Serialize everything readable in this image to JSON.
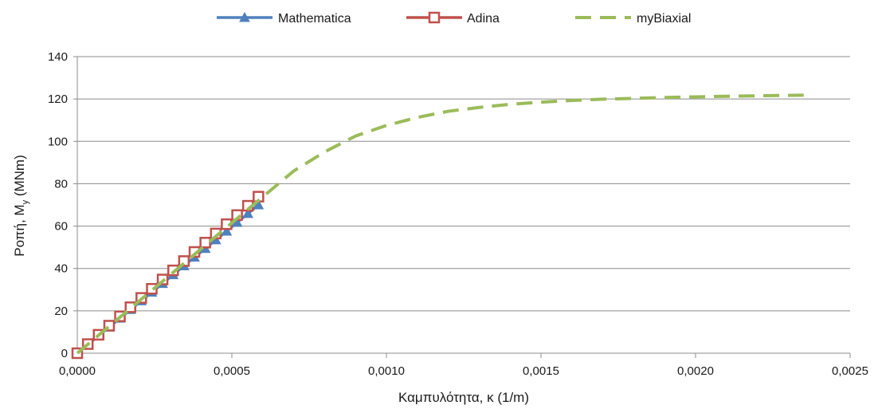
{
  "chart_data": {
    "type": "line",
    "xlabel": "Καμπυλότητα, κ (1/m)",
    "ylabel": {
      "main": "Ροπή, M",
      "sub": "y",
      "unit": " (MNm)"
    },
    "xlim": [
      0,
      0.0025
    ],
    "ylim": [
      0,
      140
    ],
    "xticks": [
      "0,0000",
      "0,0005",
      "0,0010",
      "0,0015",
      "0,0020",
      "0,0025"
    ],
    "yticks": [
      "0",
      "20",
      "40",
      "60",
      "80",
      "100",
      "120",
      "140"
    ],
    "grid": {
      "horizontal": true,
      "vertical": false
    },
    "legend_position": "top-center",
    "series": [
      {
        "name": "Mathematica",
        "color": "#4f81bd",
        "marker": "triangle",
        "line": "solid",
        "x": [
          0.0,
          3.4e-05,
          6.9e-05,
          0.000103,
          0.000138,
          0.000172,
          0.000207,
          0.000241,
          0.000276,
          0.00031,
          0.000345,
          0.000379,
          0.000414,
          0.000448,
          0.000483,
          0.000517,
          0.000552,
          0.000586
        ],
        "y": [
          0,
          4.1,
          8.2,
          12.3,
          16.5,
          20.6,
          24.7,
          28.8,
          32.9,
          37.0,
          41.2,
          45.3,
          49.4,
          53.5,
          57.6,
          61.7,
          65.9,
          70.0
        ]
      },
      {
        "name": "Adina",
        "color": "#c0504d",
        "marker": "square",
        "line": "solid",
        "x": [
          0.0,
          3.4e-05,
          6.9e-05,
          0.000103,
          0.000138,
          0.000172,
          0.000207,
          0.000241,
          0.000276,
          0.00031,
          0.000345,
          0.000379,
          0.000414,
          0.000448,
          0.000483,
          0.000517,
          0.000552,
          0.000586
        ],
        "y": [
          0,
          4.3,
          8.7,
          13.0,
          17.4,
          21.7,
          26.1,
          30.4,
          34.8,
          39.1,
          43.5,
          47.8,
          52.2,
          56.5,
          60.9,
          65.2,
          69.6,
          73.9
        ]
      },
      {
        "name": "myBiaxial",
        "color": "#9bbb59",
        "marker": "none",
        "line": "dashed",
        "x": [
          0.0,
          0.0001,
          0.0002,
          0.0003,
          0.0004,
          0.0005,
          0.0006,
          0.0007,
          0.0008,
          0.0009,
          0.001,
          0.0011,
          0.0012,
          0.0013,
          0.0014,
          0.0015,
          0.0016,
          0.0017,
          0.0018,
          0.0019,
          0.002,
          0.0021,
          0.0022,
          0.0023,
          0.00235
        ],
        "y": [
          0,
          12.3,
          24.6,
          36.9,
          49.2,
          61.5,
          73.8,
          86.0,
          95.0,
          102.5,
          107.5,
          111.3,
          114.2,
          116.0,
          117.5,
          118.5,
          119.3,
          119.9,
          120.3,
          120.7,
          121.0,
          121.3,
          121.5,
          121.7,
          121.8
        ]
      }
    ]
  }
}
